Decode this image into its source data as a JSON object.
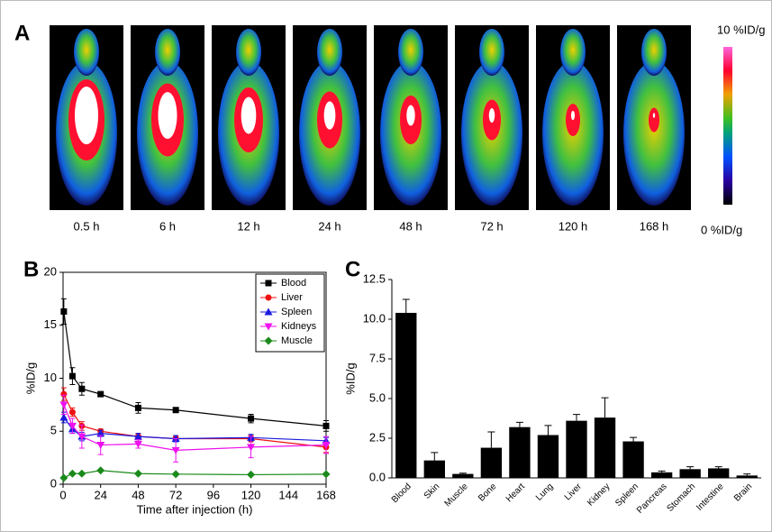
{
  "panel_a": {
    "label": "A",
    "times": [
      "0.5 h",
      "6 h",
      "12 h",
      "24 h",
      "48 h",
      "72 h",
      "120 h",
      "168 h"
    ],
    "colorbar_max": "10 %ID/g",
    "colorbar_min": "0 %ID/g"
  },
  "chart_data": [
    {
      "type": "line",
      "panel_label": "B",
      "x_label": "Time after injection (h)",
      "y_label": "%ID/g",
      "x": [
        0.5,
        6,
        12,
        24,
        48,
        72,
        120,
        168
      ],
      "xlim": [
        0,
        168
      ],
      "xticks": [
        0,
        24,
        48,
        72,
        96,
        120,
        144,
        168
      ],
      "ylim": [
        0,
        20
      ],
      "yticks": [
        0,
        5,
        10,
        15,
        20
      ],
      "legend": "upper-right",
      "series": [
        {
          "name": "Blood",
          "color": "#000000",
          "marker": "square",
          "values": [
            16.3,
            10.2,
            9.0,
            8.5,
            7.2,
            7.0,
            6.2,
            5.5
          ],
          "errors": [
            1.2,
            0.8,
            0.6,
            0.2,
            0.5,
            0.2,
            0.4,
            0.5
          ]
        },
        {
          "name": "Liver",
          "color": "#ee1111",
          "marker": "circle",
          "values": [
            8.5,
            6.8,
            5.5,
            5.0,
            4.5,
            4.3,
            4.3,
            3.5
          ],
          "errors": [
            0.6,
            0.4,
            0.4,
            0.2,
            0.3,
            0.2,
            0.3,
            0.5
          ]
        },
        {
          "name": "Spleen",
          "color": "#1a1adf",
          "marker": "triangle-up",
          "values": [
            6.3,
            5.2,
            4.5,
            4.8,
            4.5,
            4.3,
            4.4,
            4.1
          ],
          "errors": [
            0.5,
            0.4,
            0.4,
            0.3,
            0.3,
            0.3,
            0.3,
            0.3
          ]
        },
        {
          "name": "Kidneys",
          "color": "#ee11ee",
          "marker": "triangle-down",
          "values": [
            7.5,
            5.5,
            4.5,
            3.7,
            3.8,
            3.2,
            3.5,
            3.7
          ],
          "errors": [
            0.9,
            0.7,
            1.1,
            0.9,
            0.4,
            1.1,
            1.0,
            0.8
          ]
        },
        {
          "name": "Muscle",
          "color": "#1a8a1a",
          "marker": "diamond",
          "values": [
            0.6,
            1.0,
            1.0,
            1.3,
            1.0,
            0.95,
            0.9,
            0.95
          ],
          "errors": [
            0.1,
            0.1,
            0.1,
            0.1,
            0.1,
            0.1,
            0.1,
            0.1
          ]
        }
      ]
    },
    {
      "type": "bar",
      "panel_label": "C",
      "y_label": "%ID/g",
      "color": "#000000",
      "categories": [
        "Blood",
        "Skin",
        "Muscle",
        "Bone",
        "Heart",
        "Lung",
        "Liver",
        "Kidney",
        "Spleen",
        "Pancreas",
        "Stomach",
        "Intestine",
        "Brain"
      ],
      "values": [
        10.4,
        1.1,
        0.25,
        1.9,
        3.2,
        2.7,
        3.6,
        3.8,
        2.3,
        0.35,
        0.55,
        0.6,
        0.15
      ],
      "errors": [
        0.85,
        0.5,
        0.05,
        1.0,
        0.3,
        0.6,
        0.4,
        1.25,
        0.25,
        0.08,
        0.15,
        0.1,
        0.1
      ],
      "ylim": [
        0,
        12.5
      ],
      "yticks": [
        {
          "value": 0,
          "label": "0.0"
        },
        2.5,
        {
          "value": 5,
          "label": "5.0"
        },
        7.5,
        {
          "value": 10,
          "label": "10.0"
        },
        12.5
      ]
    }
  ]
}
